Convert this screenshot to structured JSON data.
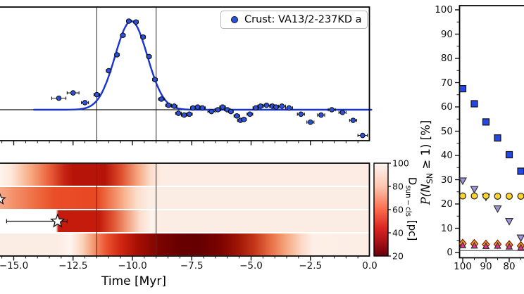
{
  "figure": {
    "background": "#ffffff",
    "axis_color": "#000000",
    "vline_color": "#3c3c3c"
  },
  "chart_data": [
    {
      "id": "crust-activity-timeseries",
      "type": "scatter",
      "legend_label": "Crust: VA13/2-237KD a",
      "marker_color": "#2a52dd",
      "marker_edge": "#0a0a0a",
      "fit_line_color": "#1733d6",
      "xlabel": "Time [Myr]",
      "ylabel": "",
      "xlim": [
        -15.6,
        0.3
      ],
      "note_units": "y in arbitrary units, normalized to fitted peak = 1",
      "x": [
        -13.1,
        -12.5,
        -12.0,
        -11.5,
        -11.0,
        -10.65,
        -10.4,
        -10.15,
        -9.85,
        -9.55,
        -9.3,
        -9.05,
        -8.78,
        -8.48,
        -8.24,
        -8.06,
        -7.82,
        -7.6,
        -7.45,
        -7.25,
        -7.05,
        -6.67,
        -6.4,
        -6.2,
        -6.0,
        -5.85,
        -5.6,
        -5.45,
        -5.3,
        -5.05,
        -4.8,
        -4.6,
        -4.35,
        -4.1,
        -3.95,
        -3.7,
        -3.4,
        -2.9,
        -2.5,
        -2.05,
        -1.6,
        -1.15,
        -0.7,
        -0.3
      ],
      "y": [
        0.13,
        0.19,
        0.08,
        0.17,
        0.44,
        0.62,
        0.84,
        1.0,
        0.99,
        0.82,
        0.6,
        0.34,
        0.12,
        0.05,
        0.04,
        -0.04,
        -0.06,
        -0.05,
        0.02,
        0.03,
        0.02,
        -0.02,
        0.0,
        0.03,
        0.0,
        -0.02,
        -0.07,
        -0.12,
        -0.11,
        -0.05,
        0.02,
        0.04,
        0.05,
        0.04,
        0.03,
        0.04,
        0.02,
        -0.05,
        -0.14,
        -0.06,
        0.0,
        -0.03,
        -0.12,
        -0.29
      ],
      "xerr": [
        0.3,
        0.25,
        0.15,
        0.12,
        0.1,
        0.1,
        0.1,
        0.1,
        0.1,
        0.1,
        0.1,
        0.1,
        0.12,
        0.12,
        0.12,
        0.12,
        0.12,
        0.12,
        0.1,
        0.1,
        0.12,
        0.15,
        0.12,
        0.12,
        0.12,
        0.1,
        0.12,
        0.12,
        0.1,
        0.12,
        0.12,
        0.12,
        0.15,
        0.12,
        0.12,
        0.15,
        0.15,
        0.15,
        0.15,
        0.15,
        0.15,
        0.15,
        0.15,
        0.2
      ],
      "gaussian_fit": {
        "center": -10.05,
        "sigma": 0.68,
        "amplitude": 1.0,
        "baseline": 0.0
      },
      "hline_y": 0.0,
      "vlines": [
        -11.5,
        -9.0
      ]
    },
    {
      "id": "cluster-distance-heatmap",
      "type": "heatmap",
      "xlabel": "Time [Myr]",
      "xticks": {
        "labels": [
          "−15.0",
          "−12.5",
          "−10.0",
          "−7.5",
          "−5.0",
          "−2.5",
          "0.0"
        ],
        "values": [
          -15,
          -12.5,
          -10,
          -7.5,
          -5,
          -2.5,
          0
        ]
      },
      "vlines": [
        -11.5,
        -9.0
      ],
      "star_marker": {
        "row": 3,
        "time": -13.15,
        "err_lo": -15.3,
        "err_hi": -12.75
      },
      "edge_star_marker": {
        "row": 2,
        "time": -15.6
      },
      "colorbar": {
        "label_parts": {
          "main": "D",
          "sub": "sun − cls",
          "unit": " [pc]"
        },
        "label_text": "D_sun−cls [pc]",
        "vmin": 20,
        "vmax": 100,
        "cmap": "Reds (dark red = 20 pc, near-white = 100 pc)",
        "ticks": {
          "labels": [
            "100",
            "80",
            "60",
            "40",
            "20"
          ],
          "values": [
            100,
            80,
            60,
            40,
            20
          ]
        },
        "gradient": [
          [
            0,
            "#fff5f0"
          ],
          [
            25,
            "#fdc6b0"
          ],
          [
            50,
            "#fb6b4b"
          ],
          [
            70,
            "#d92523"
          ],
          [
            85,
            "#a81016"
          ],
          [
            100,
            "#67000d"
          ]
        ]
      },
      "rows": [
        {
          "name": "row-1",
          "stops": [
            [
              -16.0,
              "#ffffff"
            ],
            [
              -15.1,
              "#fde7d8"
            ],
            [
              -14.3,
              "#f7ab81"
            ],
            [
              -13.5,
              "#e9603a"
            ],
            [
              -12.85,
              "#c52212"
            ],
            [
              -12.5,
              "#b61408"
            ],
            [
              -11.15,
              "#b61408"
            ],
            [
              -10.5,
              "#dd4c2c"
            ],
            [
              -9.8,
              "#f5a47c"
            ],
            [
              -9.25,
              "#fbdccb"
            ],
            [
              -8.8,
              "#fcece3"
            ],
            [
              0.3,
              "#fcece3"
            ]
          ]
        },
        {
          "name": "row-2",
          "stops": [
            [
              -16.0,
              "#f8bb9d"
            ],
            [
              -15.0,
              "#f3906a"
            ],
            [
              -14.0,
              "#ee6a40"
            ],
            [
              -13.3,
              "#e94e28"
            ],
            [
              -11.5,
              "#e84722"
            ],
            [
              -10.9,
              "#f07e55"
            ],
            [
              -10.3,
              "#f8b893"
            ],
            [
              -9.8,
              "#fcdecd"
            ],
            [
              -9.3,
              "#fcede4"
            ],
            [
              0.3,
              "#fcede4"
            ]
          ]
        },
        {
          "name": "row-3",
          "stops": [
            [
              -16.0,
              "#ffffff"
            ],
            [
              -13.22,
              "#ffffff"
            ],
            [
              -13.12,
              "#c41b0c"
            ],
            [
              -11.4,
              "#c41b0c"
            ],
            [
              -10.8,
              "#e05634"
            ],
            [
              -10.2,
              "#f2a17e"
            ],
            [
              -9.7,
              "#fbdcca"
            ],
            [
              -9.2,
              "#fdf3ed"
            ],
            [
              -8.85,
              "#fcede4"
            ],
            [
              0.3,
              "#fcede4"
            ]
          ]
        },
        {
          "name": "row-4",
          "stops": [
            [
              -16.0,
              "#fcede4"
            ],
            [
              -13.1,
              "#fcede4"
            ],
            [
              -12.6,
              "#fdf5f0"
            ],
            [
              -12.1,
              "#fbd2b8"
            ],
            [
              -11.6,
              "#f4916a"
            ],
            [
              -11.1,
              "#ea5330"
            ],
            [
              -10.5,
              "#d02712"
            ],
            [
              -9.8,
              "#a81003"
            ],
            [
              -8.9,
              "#7c0400"
            ],
            [
              -8.0,
              "#670000"
            ],
            [
              -7.2,
              "#660000"
            ],
            [
              -6.3,
              "#7b0300"
            ],
            [
              -5.6,
              "#9d1305"
            ],
            [
              -4.9,
              "#c33418"
            ],
            [
              -4.2,
              "#e76d45"
            ],
            [
              -3.5,
              "#f6aa82"
            ],
            [
              -2.9,
              "#fbd8c4"
            ],
            [
              -2.4,
              "#fdefe7"
            ],
            [
              0.3,
              "#fcede4"
            ]
          ]
        }
      ]
    },
    {
      "id": "sn-probability",
      "type": "scatter",
      "ylabel_text": "P(N_SN ≥ 1) [%]",
      "ylabel_parts": {
        "script_p": "P",
        "pre": "(N",
        "sub": "SN",
        "post": " ≥ 1) [%]"
      },
      "ylim": [
        -2,
        102
      ],
      "yticks": {
        "labels": [
          "0",
          "10",
          "20",
          "30",
          "40",
          "50",
          "60",
          "70",
          "80",
          "90",
          "100"
        ],
        "values": [
          0,
          10,
          20,
          30,
          40,
          50,
          60,
          70,
          80,
          90,
          100
        ]
      },
      "xticks": {
        "labels": [
          "100",
          "90",
          "80"
        ],
        "values": [
          100,
          90,
          80
        ]
      },
      "x": [
        100,
        95,
        90,
        85,
        80,
        75
      ],
      "series": [
        {
          "name": "blue-squares",
          "marker": "square",
          "color": "#2547e2",
          "edge": "#111111",
          "values": [
            67.5,
            61.3,
            53.8,
            47.2,
            40.3,
            33.5
          ]
        },
        {
          "name": "purple-down-triangles",
          "marker": "triangle-down",
          "color": "#a394e2",
          "edge": "#333333",
          "values": [
            29.5,
            26.0,
            22.8,
            18.0,
            12.8,
            6.0
          ]
        },
        {
          "name": "yellow-circles",
          "marker": "circle",
          "color": "#ffd42a",
          "edge": "#222222",
          "values": [
            23.3,
            23.3,
            23.3,
            23.2,
            23.2,
            23.2
          ]
        },
        {
          "name": "orange-diamonds",
          "marker": "diamond",
          "color": "#ffa022",
          "edge": "#7a1a00",
          "values": [
            3.7,
            3.6,
            3.3,
            3.4,
            3.1,
            2.7
          ]
        },
        {
          "name": "pink-up-triangles",
          "marker": "triangle-up",
          "color": "#ea2f8f",
          "edge": "#333333",
          "values": [
            2.9,
            2.8,
            2.6,
            2.7,
            2.4,
            2.0
          ]
        }
      ],
      "hline_y": 0.8
    }
  ]
}
